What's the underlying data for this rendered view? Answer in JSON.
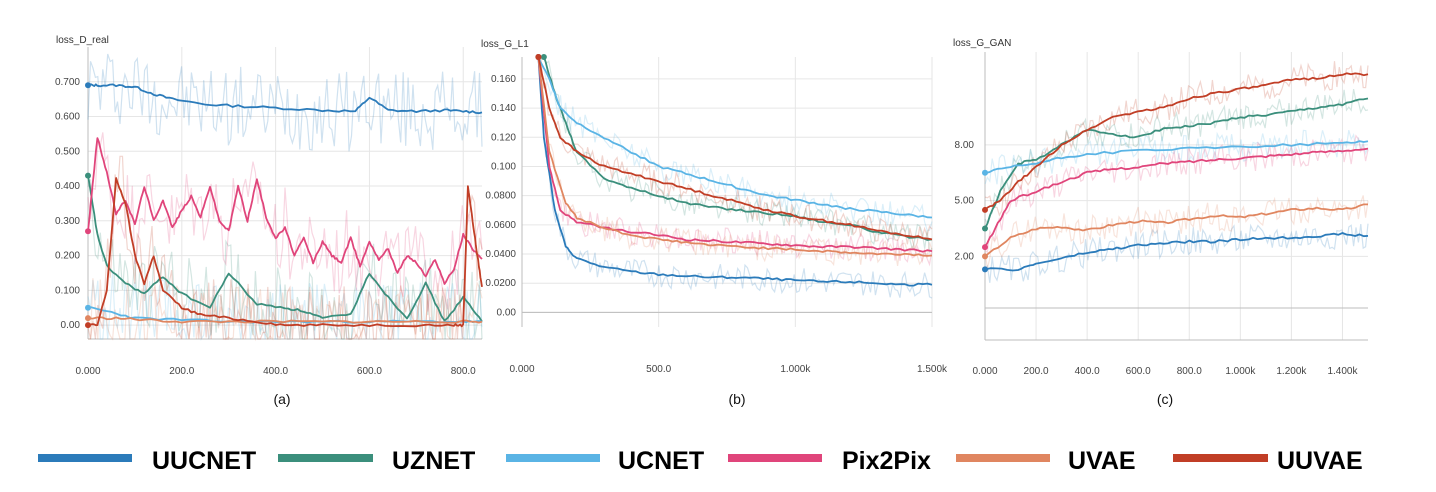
{
  "legend": [
    {
      "name": "UUCNET",
      "color": "#2b7bba"
    },
    {
      "name": "UZNET",
      "color": "#3b8f7c"
    },
    {
      "name": "UCNET",
      "color": "#5ab4e5"
    },
    {
      "name": "Pix2Pix",
      "color": "#e0457b"
    },
    {
      "name": "UVAE",
      "color": "#e08660"
    },
    {
      "name": "UUVAE",
      "color": "#c13e26"
    }
  ],
  "chart_data": [
    {
      "type": "line",
      "title": "loss_D_real",
      "caption": "(a)",
      "xlim": [
        0,
        840
      ],
      "ylim": [
        -0.04,
        0.8
      ],
      "xticks": [
        0,
        200,
        400,
        600,
        800
      ],
      "xtick_labels": [
        "0.000",
        "200.0",
        "400.0",
        "600.0",
        "800.0"
      ],
      "yticks": [
        0,
        0.1,
        0.2,
        0.3,
        0.4,
        0.5,
        0.6,
        0.7
      ],
      "ytick_labels": [
        "0.00",
        "0.100",
        "0.200",
        "0.300",
        "0.400",
        "0.500",
        "0.600",
        "0.700"
      ],
      "series": [
        {
          "name": "UUCNET",
          "x": [
            0,
            20,
            60,
            100,
            140,
            180,
            250,
            320,
            400,
            500,
            570,
            600,
            640,
            700,
            760,
            800,
            840
          ],
          "y": [
            0.69,
            0.69,
            0.69,
            0.685,
            0.665,
            0.65,
            0.635,
            0.63,
            0.625,
            0.618,
            0.615,
            0.655,
            0.618,
            0.615,
            0.618,
            0.615,
            0.612
          ]
        },
        {
          "name": "UZNET",
          "x": [
            0,
            20,
            40,
            80,
            120,
            160,
            200,
            260,
            300,
            360,
            420,
            460,
            500,
            560,
            600,
            640,
            680,
            720,
            760,
            800,
            840
          ],
          "y": [
            0.43,
            0.26,
            0.17,
            0.12,
            0.09,
            0.14,
            0.09,
            0.05,
            0.15,
            0.06,
            0.05,
            0.04,
            0.02,
            0.03,
            0.15,
            0.08,
            0.02,
            0.12,
            0.01,
            0.08,
            0.01
          ]
        },
        {
          "name": "UCNET",
          "x": [
            0,
            40,
            100,
            200,
            300,
            400,
            500,
            600,
            700,
            800,
            840
          ],
          "y": [
            0.05,
            0.04,
            0.02,
            0.015,
            0.01,
            0.01,
            0.01,
            0.01,
            0.01,
            0.01,
            0.01
          ]
        },
        {
          "name": "Pix2Pix",
          "x": [
            0,
            20,
            40,
            60,
            80,
            100,
            120,
            140,
            160,
            180,
            200,
            220,
            240,
            260,
            280,
            300,
            320,
            340,
            360,
            380,
            400,
            420,
            440,
            460,
            480,
            500,
            520,
            540,
            560,
            580,
            600,
            620,
            640,
            660,
            680,
            700,
            720,
            740,
            760,
            780,
            800,
            820,
            840
          ],
          "y": [
            0.27,
            0.54,
            0.44,
            0.32,
            0.36,
            0.29,
            0.4,
            0.3,
            0.36,
            0.28,
            0.33,
            0.37,
            0.31,
            0.4,
            0.3,
            0.27,
            0.4,
            0.3,
            0.42,
            0.31,
            0.25,
            0.28,
            0.2,
            0.25,
            0.18,
            0.24,
            0.2,
            0.18,
            0.25,
            0.17,
            0.24,
            0.19,
            0.22,
            0.15,
            0.2,
            0.18,
            0.14,
            0.19,
            0.12,
            0.16,
            0.26,
            0.22,
            0.19
          ]
        },
        {
          "name": "UVAE",
          "x": [
            0,
            60,
            120,
            200,
            300,
            400,
            500,
            600,
            700,
            800,
            840
          ],
          "y": [
            0.02,
            0.02,
            0.015,
            0.01,
            0.01,
            0.01,
            0.01,
            0.01,
            0.01,
            0.01,
            0.01
          ]
        },
        {
          "name": "UUVAE",
          "x": [
            0,
            20,
            40,
            60,
            80,
            100,
            120,
            140,
            160,
            200,
            240,
            300,
            360,
            420,
            500,
            600,
            700,
            780,
            800,
            810,
            820,
            830,
            840
          ],
          "y": [
            0.0,
            0.0,
            0.1,
            0.42,
            0.35,
            0.2,
            0.12,
            0.2,
            0.1,
            0.05,
            0.03,
            0.02,
            0.01,
            0.0,
            0.0,
            0.0,
            0.0,
            0.0,
            0.0,
            0.4,
            0.3,
            0.2,
            0.11
          ]
        }
      ]
    },
    {
      "type": "line",
      "title": "loss_G_L1",
      "caption": "(b)",
      "xlim": [
        0,
        1500
      ],
      "ylim": [
        -0.01,
        0.175
      ],
      "xticks": [
        0,
        500,
        1000,
        1500
      ],
      "xtick_labels": [
        "0.000",
        "500.0",
        "1.000k",
        "1.500k"
      ],
      "yticks": [
        0,
        0.02,
        0.04,
        0.06,
        0.08,
        0.1,
        0.12,
        0.14,
        0.16
      ],
      "ytick_labels": [
        "0.00",
        "0.0200",
        "0.0400",
        "0.0600",
        "0.0800",
        "0.100",
        "0.120",
        "0.140",
        "0.160"
      ],
      "series": [
        {
          "name": "UUCNET",
          "x": [
            60,
            80,
            120,
            160,
            200,
            300,
            400,
            500,
            600,
            700,
            800,
            900,
            1000,
            1100,
            1200,
            1300,
            1400,
            1500
          ],
          "y": [
            0.175,
            0.12,
            0.07,
            0.045,
            0.037,
            0.031,
            0.028,
            0.026,
            0.025,
            0.024,
            0.024,
            0.023,
            0.022,
            0.021,
            0.021,
            0.02,
            0.019,
            0.019
          ]
        },
        {
          "name": "UZNET",
          "x": [
            80,
            120,
            160,
            200,
            300,
            400,
            500,
            600,
            700,
            800,
            900,
            1000,
            1100,
            1200,
            1300,
            1400,
            1500
          ],
          "y": [
            0.175,
            0.15,
            0.13,
            0.11,
            0.092,
            0.085,
            0.08,
            0.075,
            0.072,
            0.07,
            0.068,
            0.066,
            0.062,
            0.06,
            0.055,
            0.052,
            0.05
          ]
        },
        {
          "name": "UCNET",
          "x": [
            60,
            100,
            140,
            200,
            300,
            400,
            500,
            600,
            700,
            800,
            900,
            1000,
            1100,
            1200,
            1300,
            1400,
            1500
          ],
          "y": [
            0.175,
            0.16,
            0.14,
            0.13,
            0.12,
            0.11,
            0.1,
            0.095,
            0.09,
            0.085,
            0.08,
            0.077,
            0.074,
            0.071,
            0.069,
            0.067,
            0.065
          ]
        },
        {
          "name": "Pix2Pix",
          "x": [
            60,
            100,
            140,
            200,
            300,
            400,
            500,
            600,
            700,
            800,
            900,
            1000,
            1100,
            1200,
            1300,
            1400,
            1500
          ],
          "y": [
            0.175,
            0.1,
            0.07,
            0.062,
            0.058,
            0.055,
            0.053,
            0.05,
            0.049,
            0.048,
            0.047,
            0.046,
            0.045,
            0.045,
            0.044,
            0.043,
            0.042
          ]
        },
        {
          "name": "UVAE",
          "x": [
            60,
            100,
            160,
            200,
            300,
            400,
            500,
            600,
            700,
            800,
            900,
            1000,
            1100,
            1200,
            1300,
            1400,
            1500
          ],
          "y": [
            0.175,
            0.11,
            0.075,
            0.065,
            0.058,
            0.053,
            0.05,
            0.048,
            0.046,
            0.045,
            0.044,
            0.043,
            0.042,
            0.041,
            0.04,
            0.04,
            0.039
          ]
        },
        {
          "name": "UUVAE",
          "x": [
            60,
            100,
            140,
            200,
            300,
            400,
            500,
            600,
            700,
            800,
            900,
            1000,
            1100,
            1200,
            1300,
            1400,
            1500
          ],
          "y": [
            0.175,
            0.14,
            0.12,
            0.11,
            0.1,
            0.095,
            0.09,
            0.085,
            0.08,
            0.075,
            0.07,
            0.066,
            0.063,
            0.06,
            0.056,
            0.053,
            0.05
          ]
        }
      ]
    },
    {
      "type": "line",
      "title": "loss_G_GAN",
      "caption": "(c)",
      "xlim": [
        0,
        1500
      ],
      "ylim": [
        -2.5,
        13
      ],
      "xticks": [
        0,
        200,
        400,
        600,
        800,
        1000,
        1200,
        1400
      ],
      "xtick_labels": [
        "0.000",
        "200.0",
        "400.0",
        "600.0",
        "800.0",
        "1.000k",
        "1.200k",
        "1.400k"
      ],
      "yticks": [
        2,
        5,
        8
      ],
      "ytick_labels": [
        "2.00",
        "5.00",
        "8.00"
      ],
      "series": [
        {
          "name": "UUCNET",
          "x": [
            0,
            130,
            200,
            300,
            400,
            500,
            600,
            700,
            800,
            900,
            1000,
            1100,
            1200,
            1300,
            1400,
            1500
          ],
          "y": [
            1.3,
            1.3,
            1.6,
            1.9,
            2.2,
            2.4,
            2.6,
            2.7,
            2.8,
            2.8,
            2.9,
            3.0,
            3.0,
            3.1,
            3.2,
            3.1
          ]
        },
        {
          "name": "UZNET",
          "x": [
            0,
            60,
            130,
            200,
            300,
            400,
            500,
            600,
            700,
            800,
            900,
            1000,
            1100,
            1200,
            1300,
            1400,
            1500
          ],
          "y": [
            3.5,
            5.5,
            7.0,
            7.2,
            8.0,
            8.8,
            8.6,
            8.4,
            8.9,
            9.0,
            9.2,
            9.5,
            9.6,
            9.8,
            10.0,
            10.2,
            10.5
          ]
        },
        {
          "name": "UCNET",
          "x": [
            0,
            100,
            200,
            300,
            400,
            600,
            800,
            1000,
            1200,
            1400,
            1500
          ],
          "y": [
            6.5,
            6.8,
            7.0,
            7.3,
            7.5,
            7.7,
            7.8,
            7.9,
            8.0,
            8.1,
            8.2
          ]
        },
        {
          "name": "Pix2Pix",
          "x": [
            0,
            60,
            100,
            200,
            300,
            400,
            500,
            600,
            700,
            800,
            900,
            1000,
            1100,
            1200,
            1300,
            1400,
            1500
          ],
          "y": [
            2.5,
            4.0,
            5.0,
            5.5,
            6.0,
            6.5,
            6.7,
            6.8,
            7.0,
            7.1,
            7.2,
            7.3,
            7.4,
            7.5,
            7.6,
            7.7,
            7.8
          ]
        },
        {
          "name": "UVAE",
          "x": [
            0,
            100,
            200,
            300,
            400,
            500,
            600,
            700,
            800,
            900,
            1000,
            1100,
            1200,
            1300,
            1400,
            1500
          ],
          "y": [
            2.0,
            3.0,
            3.5,
            3.6,
            3.4,
            3.7,
            3.9,
            3.8,
            4.0,
            4.2,
            4.1,
            4.3,
            4.5,
            4.6,
            4.5,
            4.8
          ]
        },
        {
          "name": "UUVAE",
          "x": [
            0,
            60,
            130,
            200,
            300,
            400,
            500,
            600,
            700,
            800,
            900,
            1000,
            1100,
            1200,
            1300,
            1400,
            1500
          ],
          "y": [
            4.5,
            5.0,
            6.0,
            6.8,
            8.0,
            8.8,
            9.5,
            9.8,
            10.0,
            10.5,
            10.8,
            11.0,
            11.2,
            11.5,
            11.6,
            11.8,
            11.8
          ]
        }
      ]
    }
  ]
}
